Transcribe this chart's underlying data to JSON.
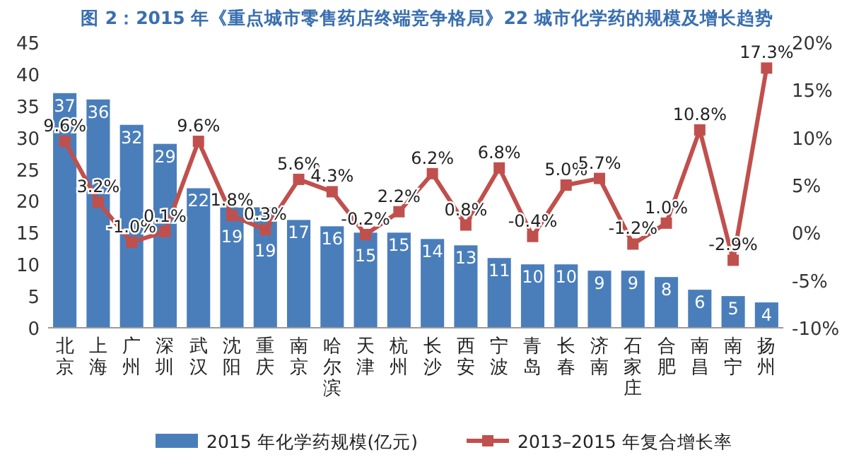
{
  "chart_data": {
    "type": "bar",
    "title": "图 2：2015 年《重点城市零售药店终端竞争格局》22 城市化学药的规模及增长趋势",
    "categories": [
      "北京",
      "上海",
      "广州",
      "深圳",
      "武汉",
      "沈阳",
      "重庆",
      "南京",
      "哈尔滨",
      "天津",
      "杭州",
      "长沙",
      "西安",
      "宁波",
      "青岛",
      "长春",
      "济南",
      "石家庄",
      "合肥",
      "南昌",
      "南宁",
      "扬州"
    ],
    "series": [
      {
        "name": "2015 年化学药规模(亿元)",
        "color": "#4a7ebb",
        "values": [
          37,
          36,
          32,
          29,
          22,
          19,
          19,
          17,
          16,
          15,
          15,
          14,
          13,
          11,
          10,
          10,
          9,
          9,
          8,
          6,
          5,
          4
        ],
        "value_labels": [
          "37",
          "36",
          "32",
          "29",
          "22",
          "19",
          "19",
          "17",
          "16",
          "15",
          "15",
          "14",
          "13",
          "11",
          "10",
          "10",
          "9",
          "9",
          "8",
          "6",
          "5",
          "4"
        ]
      },
      {
        "name": "2013–2015 年复合增长率",
        "type": "line",
        "axis": "y2",
        "color": "#c0504d",
        "values": [
          9.6,
          3.2,
          -1.0,
          0.1,
          9.6,
          1.8,
          0.3,
          5.6,
          4.3,
          -0.2,
          2.2,
          6.2,
          0.8,
          6.8,
          -0.4,
          5.0,
          5.7,
          -1.2,
          1.0,
          10.8,
          -2.9,
          17.3
        ],
        "value_labels": [
          "9.6%",
          "3.2%",
          "-1.0%",
          "0.1%",
          "9.6%",
          "1.8%",
          "0.3%",
          "5.6%",
          "4.3%",
          "-0.2%",
          "2.2%",
          "6.2%",
          "0.8%",
          "6.8%",
          "-0.4%",
          "5.0%",
          "5.7%",
          "-1.2%",
          "1.0%",
          "10.8%",
          "-2.9%",
          "17.3%"
        ]
      }
    ],
    "ylim": [
      0,
      45
    ],
    "yticks": [
      0,
      5,
      10,
      15,
      20,
      25,
      30,
      35,
      40,
      45
    ],
    "y2lim": [
      -10,
      20
    ],
    "y2ticks": [
      {
        "value": -10,
        "label": "-10%"
      },
      {
        "value": -5,
        "label": "-5%"
      },
      {
        "value": 0,
        "label": "0%"
      },
      {
        "value": 5,
        "label": "5%"
      },
      {
        "value": 10,
        "label": "10%"
      },
      {
        "value": 15,
        "label": "15%"
      },
      {
        "value": 20,
        "label": "20%"
      }
    ],
    "marker": "square",
    "line_style": "solid",
    "legend": "bottom",
    "grid": false
  }
}
